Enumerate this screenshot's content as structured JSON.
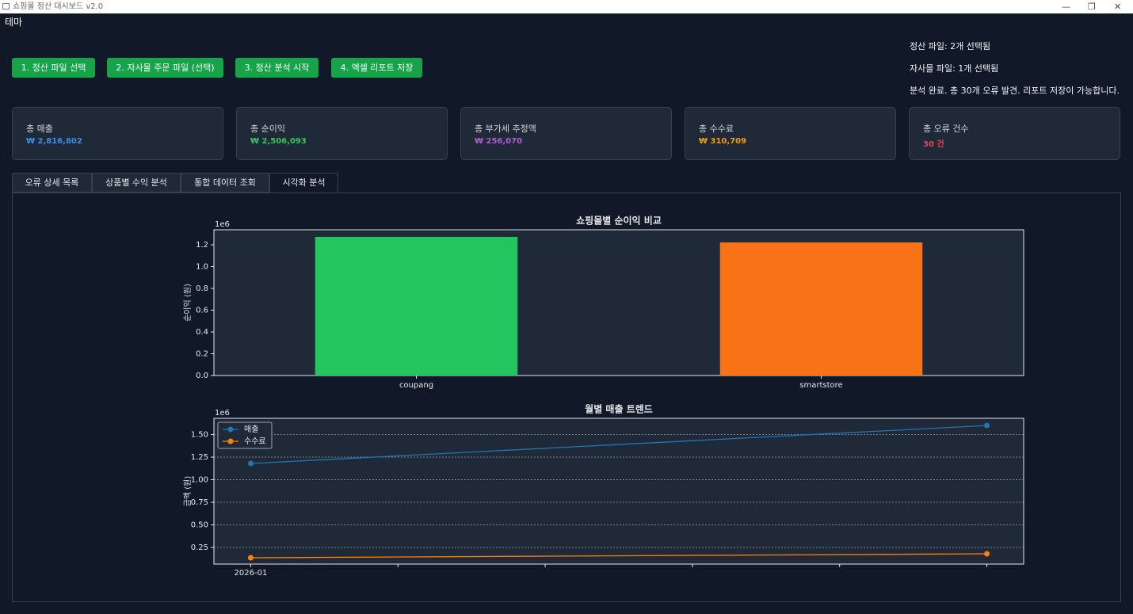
{
  "window": {
    "title": "쇼핑몰 정산 대시보드 v2.0"
  },
  "menu": [
    "테마"
  ],
  "buttons": [
    "1. 정산 파일 선택",
    "2. 자사몰 주문 파일 (선택)",
    "3. 정산 분석 시작",
    "4. 엑셀 리포트 저장"
  ],
  "status": [
    "정산 파일: 2개 선택됨",
    "자사몰 파일: 1개 선택됨",
    "분석 완료. 총 30개 오류 발견. 리포트 저장이 가능합니다."
  ],
  "cards": [
    {
      "label": "총 매출",
      "value": "₩ 2,816,802",
      "color": "#3b8fe8"
    },
    {
      "label": "총 순이익",
      "value": "₩ 2,506,093",
      "color": "#34c759"
    },
    {
      "label": "총 부가세 추정액",
      "value": "₩ 256,070",
      "color": "#b05fd6"
    },
    {
      "label": "총 수수료",
      "value": "₩ 310,709",
      "color": "#f59e0b"
    },
    {
      "label": "총 오류 건수",
      "value": "30 건",
      "color": "#ef4444"
    }
  ],
  "tabs": {
    "items": [
      "오류 상세 목록",
      "상품별 수익 분석",
      "통합 데이터 조회",
      "시각화 분석"
    ],
    "active": 3
  },
  "chart_data": [
    {
      "type": "bar",
      "title": "쇼핑몰별 순이익 비교",
      "ylabel": "순이익 (원)",
      "y_offset_label": "1e6",
      "categories": [
        "coupang",
        "smartstore"
      ],
      "values": [
        1272700,
        1221800
      ],
      "colors": [
        "#22c55e",
        "#f97316"
      ],
      "ylim": [
        0,
        1338000
      ],
      "yticks": [
        {
          "value": 0,
          "label": "0.0"
        },
        {
          "value": 200000,
          "label": "0.2"
        },
        {
          "value": 400000,
          "label": "0.4"
        },
        {
          "value": 600000,
          "label": "0.6"
        },
        {
          "value": 800000,
          "label": "0.8"
        },
        {
          "value": 1000000,
          "label": "1.0"
        },
        {
          "value": 1200000,
          "label": "1.2"
        }
      ],
      "grid": false
    },
    {
      "type": "line",
      "title": "월별 매출 트렌드",
      "ylabel": "금액 (원)",
      "y_offset_label": "1e6",
      "x": [
        "2026-01",
        null
      ],
      "series": [
        {
          "name": "매출",
          "color": "#1f77b4",
          "values": [
            1180000,
            1600000
          ]
        },
        {
          "name": "수수료",
          "color": "#ff7f0e",
          "values": [
            136000,
            180000
          ]
        }
      ],
      "ylim": [
        66000,
        1680000
      ],
      "yticks": [
        {
          "value": 250000,
          "label": "0.25"
        },
        {
          "value": 500000,
          "label": "0.50"
        },
        {
          "value": 750000,
          "label": "0.75"
        },
        {
          "value": 1000000,
          "label": "1.00"
        },
        {
          "value": 1250000,
          "label": "1.25"
        },
        {
          "value": 1500000,
          "label": "1.50"
        }
      ],
      "grid": true,
      "legend": "upper left"
    }
  ]
}
